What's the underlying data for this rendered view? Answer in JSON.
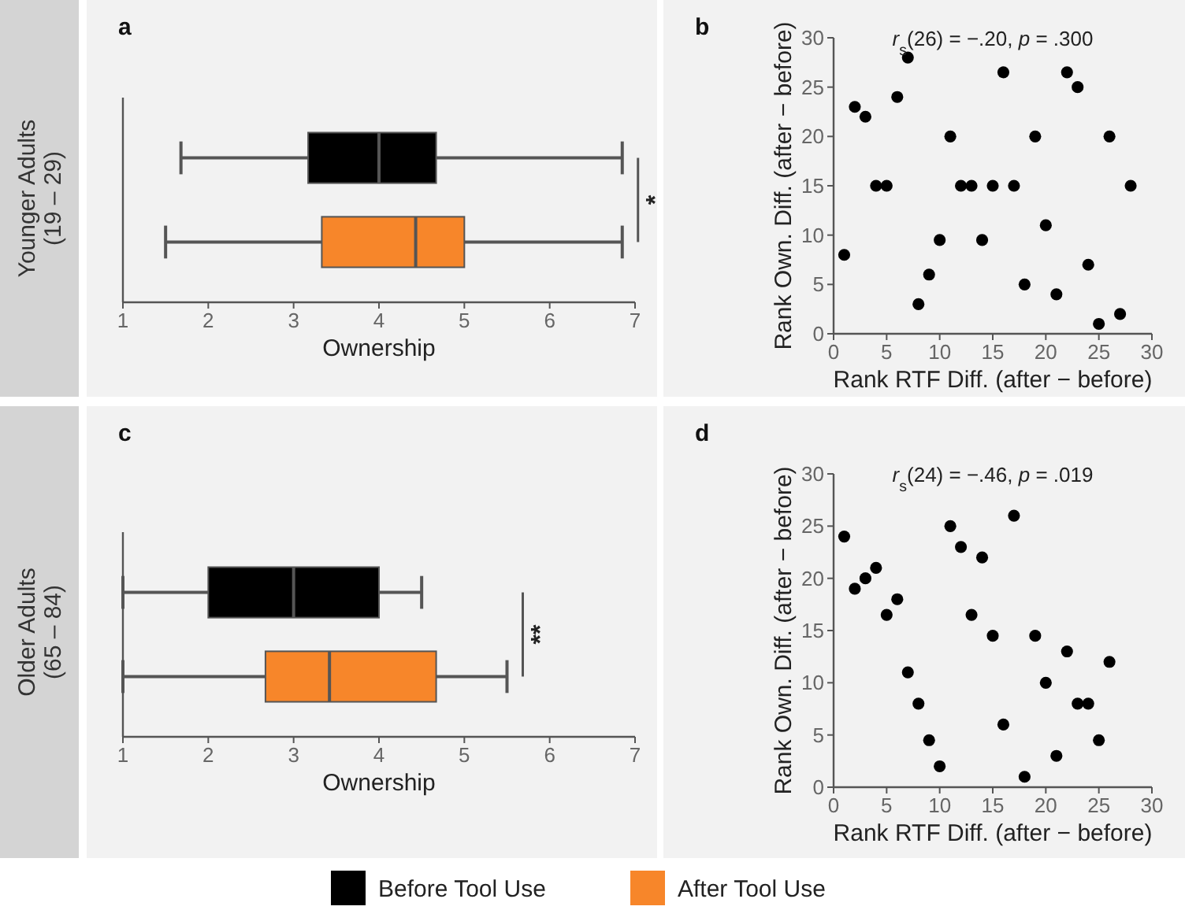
{
  "chart_data": [
    {
      "type": "box",
      "title": "a",
      "ylabel": "Younger Adults\n(19 – 29)",
      "xlabel": "Ownership",
      "orientation": "horizontal",
      "categories": [
        null
      ],
      "xlim": [
        1,
        7
      ],
      "xticks": [
        1,
        2,
        3,
        4,
        5,
        6,
        7
      ],
      "legend": "bottom",
      "annotations": [
        "*"
      ],
      "series": [
        {
          "name": "Before Tool Use",
          "color": "#000000",
          "boxes": [
            {
              "low": 1.68,
              "q1": 3.17,
              "median": 4.0,
              "q3": 4.67,
              "high": 6.85
            }
          ]
        },
        {
          "name": "After Tool Use",
          "color": "#f7862a",
          "boxes": [
            {
              "low": 1.5,
              "q1": 3.33,
              "median": 4.43,
              "q3": 5.0,
              "high": 6.85
            }
          ]
        }
      ]
    },
    {
      "type": "scatter",
      "title": "b",
      "xlabel": "Rank RTF Diff. (after − before)",
      "ylabel": "Rank Own. Diff. (after − before)",
      "annotations": [
        "r$_{s}$(26) = −.20, p = .300"
      ],
      "xlim": [
        0,
        30
      ],
      "xticks": [
        0,
        5,
        10,
        15,
        20,
        25,
        30
      ],
      "ylim": [
        0,
        30
      ],
      "yticks": [
        0,
        5,
        10,
        15,
        20,
        25,
        30
      ],
      "marker": "circle",
      "color": "#000000",
      "x": [
        1,
        2,
        3,
        4,
        5,
        6,
        7,
        8,
        9,
        10,
        11,
        12,
        13,
        14,
        15,
        16,
        17,
        18,
        19,
        20,
        21,
        22,
        23,
        24,
        25,
        26,
        27,
        28
      ],
      "values": [
        8,
        23,
        22,
        15,
        15,
        24,
        28,
        3,
        6,
        9.5,
        20,
        15,
        15,
        9.5,
        15,
        26.5,
        15,
        5,
        20,
        11,
        4,
        26.5,
        25,
        7,
        1,
        20,
        2,
        15
      ]
    },
    {
      "type": "box",
      "title": "c",
      "ylabel": "Older Adults\n(65 – 84)",
      "xlabel": "Ownership",
      "orientation": "horizontal",
      "categories": [
        null
      ],
      "xlim": [
        1,
        7
      ],
      "xticks": [
        1,
        2,
        3,
        4,
        5,
        6,
        7
      ],
      "annotations": [
        "**"
      ],
      "series": [
        {
          "color": "#000000",
          "boxes": [
            {
              "low": 1,
              "q1": 2,
              "median": 3,
              "q3": 4,
              "high": 4.5
            }
          ]
        },
        {
          "color": "#f7862a",
          "boxes": [
            {
              "low": 1,
              "q1": 2.67,
              "median": 3.42,
              "q3": 4.67,
              "high": 5.5
            }
          ]
        }
      ]
    },
    {
      "type": "scatter",
      "title": "d",
      "xlabel": "Rank RTF Diff. (after − before)",
      "ylabel": "Rank Own. Diff. (after − before)",
      "annotations": [
        "r$_{s}$(24) = −.46, p = .019"
      ],
      "xlim": [
        0,
        30
      ],
      "xticks": [
        0,
        5,
        10,
        15,
        20,
        25,
        30
      ],
      "ylim": [
        0,
        30
      ],
      "yticks": [
        0,
        5,
        10,
        15,
        20,
        25,
        30
      ],
      "marker": "circle",
      "color": "#000000",
      "x": [
        1,
        2,
        3,
        4,
        5,
        6,
        7,
        8,
        9,
        10,
        11,
        12,
        13,
        14,
        15,
        16,
        17,
        18,
        19,
        20,
        21,
        22,
        23,
        24,
        25,
        26
      ],
      "values": [
        24,
        19,
        20,
        21,
        16.5,
        18,
        11,
        8,
        4.5,
        2,
        25,
        23,
        16.5,
        22,
        14.5,
        6,
        26,
        1,
        14.5,
        10,
        3,
        13,
        8,
        8,
        4.5,
        12
      ]
    }
  ]
}
